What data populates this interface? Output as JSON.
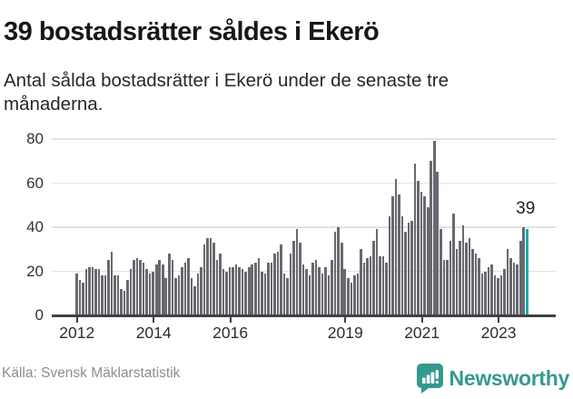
{
  "title": "39 bostadsrätter såldes i Ekerö",
  "subtitle": "Antal sålda bostadsrätter i Ekerö under de senaste tre månaderna.",
  "annotation": {
    "label": "39"
  },
  "source": "Källa: Svensk Mäklarstatistik",
  "brand": {
    "name": "Newsworthy",
    "icon": "speech-bubble-bar-chart-icon"
  },
  "colors": {
    "bar": "#686870",
    "highlight": "#19abad",
    "brand_teal": "#35998e",
    "gridline": "#e2e2e2",
    "axis": "#404042",
    "title_text": "#15181b",
    "source_text": "#8d8d8d"
  },
  "chart_data": {
    "type": "bar",
    "x_start": "2012-01",
    "x_end": "2023-10",
    "x_unit": "month",
    "grid": true,
    "ylim": [
      0,
      85
    ],
    "y_ticks": [
      0,
      20,
      40,
      60,
      80
    ],
    "x_ticks": [
      {
        "label": "2012",
        "month_index": 0
      },
      {
        "label": "2014",
        "month_index": 24
      },
      {
        "label": "2016",
        "month_index": 48
      },
      {
        "label": "2019",
        "month_index": 84
      },
      {
        "label": "2021",
        "month_index": 108
      },
      {
        "label": "2023",
        "month_index": 132
      }
    ],
    "highlight_index": 141,
    "series": [
      {
        "name": "Antal sålda bostadsrätter",
        "values": [
          19,
          16,
          15,
          21,
          22,
          22,
          21,
          21,
          18,
          18,
          25,
          29,
          18,
          18,
          12,
          11,
          16,
          21,
          25,
          26,
          25,
          24,
          21,
          19,
          20,
          23,
          25,
          23,
          17,
          28,
          25,
          17,
          18,
          22,
          24,
          26,
          17,
          13,
          19,
          22,
          32,
          35,
          35,
          33,
          25,
          28,
          21,
          20,
          22,
          22,
          23,
          22,
          21,
          20,
          22,
          23,
          24,
          26,
          20,
          19,
          24,
          24,
          28,
          29,
          32,
          19,
          17,
          28,
          34,
          39,
          33,
          23,
          21,
          18,
          24,
          25,
          22,
          19,
          22,
          18,
          25,
          38,
          40,
          33,
          21,
          17,
          15,
          18,
          19,
          30,
          24,
          26,
          27,
          34,
          39,
          27,
          27,
          24,
          45,
          54,
          62,
          55,
          45,
          38,
          42,
          43,
          69,
          61,
          56,
          54,
          49,
          70,
          79,
          65,
          39,
          25,
          25,
          34,
          46,
          30,
          34,
          41,
          33,
          35,
          30,
          28,
          26,
          19,
          20,
          22,
          23,
          18,
          17,
          18,
          21,
          30,
          26,
          24,
          23,
          34,
          40,
          39
        ]
      }
    ]
  }
}
